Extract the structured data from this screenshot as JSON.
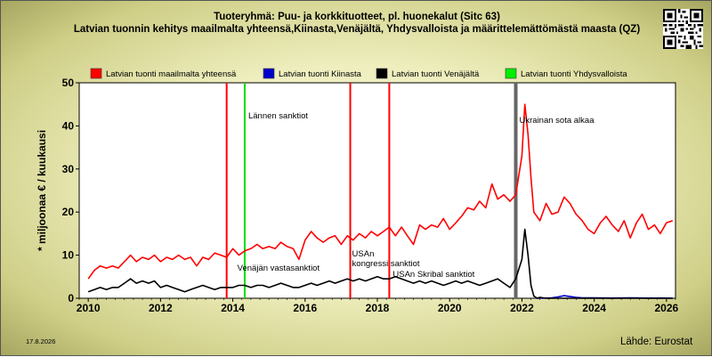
{
  "title": "Tuoteryhmä: Puu- ja korkkituotteet, pl. huonekalut (Sitc 63)",
  "subtitle": "Latvian tuonnin kehitys maailmalta yhteensä,Kiinasta,Venäjältä, Yhdysvalloista ja määrittelemättömästä maasta (QZ)",
  "date_label": "17.8.2026",
  "source": "Lähde: Eurostat",
  "chart_data": {
    "type": "line",
    "title": "Tuoteryhmä: Puu- ja korkkituotteet, pl. huonekalut (Sitc 63)",
    "subtitle": "Latvian tuonnin kehitys maailmalta yhteensä,Kiinasta,Venäjältä, Yhdysvalloista ja määrittelemättömästä maasta (QZ)",
    "ylabel": "* miljoonaa € / kuukausi",
    "xlabel": "",
    "xlim": [
      2009.75,
      2026.25
    ],
    "ylim": [
      0,
      50
    ],
    "yticks": [
      0,
      10,
      20,
      30,
      40,
      50
    ],
    "xticks": [
      2010,
      2012,
      2014,
      2016,
      2018,
      2020,
      2022,
      2024,
      2026
    ],
    "grid": false,
    "legend_position": "top",
    "series": [
      {
        "name": "Latvian tuonti maailmalta yhteensä",
        "color": "#ff0000",
        "points": [
          [
            2010.0,
            4.5
          ],
          [
            2010.17,
            6.5
          ],
          [
            2010.33,
            7.5
          ],
          [
            2010.5,
            7.0
          ],
          [
            2010.67,
            7.5
          ],
          [
            2010.83,
            7.0
          ],
          [
            2011.0,
            8.5
          ],
          [
            2011.17,
            10.0
          ],
          [
            2011.33,
            8.5
          ],
          [
            2011.5,
            9.5
          ],
          [
            2011.67,
            9.0
          ],
          [
            2011.83,
            10.0
          ],
          [
            2012.0,
            8.5
          ],
          [
            2012.17,
            9.5
          ],
          [
            2012.33,
            9.0
          ],
          [
            2012.5,
            10.0
          ],
          [
            2012.67,
            9.0
          ],
          [
            2012.83,
            9.5
          ],
          [
            2013.0,
            7.5
          ],
          [
            2013.17,
            9.5
          ],
          [
            2013.33,
            9.0
          ],
          [
            2013.5,
            10.5
          ],
          [
            2013.67,
            10.0
          ],
          [
            2013.83,
            9.5
          ],
          [
            2014.0,
            11.5
          ],
          [
            2014.17,
            10.0
          ],
          [
            2014.33,
            11.0
          ],
          [
            2014.5,
            11.5
          ],
          [
            2014.67,
            12.5
          ],
          [
            2014.83,
            11.5
          ],
          [
            2015.0,
            12.0
          ],
          [
            2015.17,
            11.5
          ],
          [
            2015.33,
            13.0
          ],
          [
            2015.5,
            12.0
          ],
          [
            2015.67,
            11.5
          ],
          [
            2015.83,
            9.0
          ],
          [
            2016.0,
            13.5
          ],
          [
            2016.17,
            15.5
          ],
          [
            2016.33,
            14.0
          ],
          [
            2016.5,
            13.0
          ],
          [
            2016.67,
            14.0
          ],
          [
            2016.83,
            14.5
          ],
          [
            2017.0,
            12.5
          ],
          [
            2017.17,
            14.5
          ],
          [
            2017.33,
            13.5
          ],
          [
            2017.5,
            15.0
          ],
          [
            2017.67,
            14.0
          ],
          [
            2017.83,
            15.5
          ],
          [
            2018.0,
            14.5
          ],
          [
            2018.17,
            15.5
          ],
          [
            2018.33,
            16.5
          ],
          [
            2018.5,
            14.5
          ],
          [
            2018.67,
            16.5
          ],
          [
            2018.83,
            14.5
          ],
          [
            2019.0,
            12.5
          ],
          [
            2019.17,
            17.0
          ],
          [
            2019.33,
            16.0
          ],
          [
            2019.5,
            17.0
          ],
          [
            2019.67,
            16.5
          ],
          [
            2019.83,
            18.5
          ],
          [
            2020.0,
            16.0
          ],
          [
            2020.17,
            17.5
          ],
          [
            2020.33,
            19.0
          ],
          [
            2020.5,
            21.0
          ],
          [
            2020.67,
            20.5
          ],
          [
            2020.83,
            22.5
          ],
          [
            2021.0,
            21.0
          ],
          [
            2021.17,
            26.5
          ],
          [
            2021.33,
            23.0
          ],
          [
            2021.5,
            24.0
          ],
          [
            2021.67,
            22.5
          ],
          [
            2021.83,
            24.0
          ],
          [
            2022.0,
            33.0
          ],
          [
            2022.08,
            45.0
          ],
          [
            2022.17,
            38.0
          ],
          [
            2022.25,
            28.0
          ],
          [
            2022.33,
            20.0
          ],
          [
            2022.5,
            18.0
          ],
          [
            2022.67,
            22.0
          ],
          [
            2022.83,
            19.5
          ],
          [
            2023.0,
            20.0
          ],
          [
            2023.17,
            23.5
          ],
          [
            2023.33,
            22.0
          ],
          [
            2023.5,
            19.5
          ],
          [
            2023.67,
            18.0
          ],
          [
            2023.83,
            16.0
          ],
          [
            2024.0,
            15.0
          ],
          [
            2024.17,
            17.5
          ],
          [
            2024.33,
            19.0
          ],
          [
            2024.5,
            17.0
          ],
          [
            2024.67,
            15.5
          ],
          [
            2024.83,
            18.0
          ],
          [
            2025.0,
            14.0
          ],
          [
            2025.17,
            17.5
          ],
          [
            2025.33,
            19.5
          ],
          [
            2025.5,
            16.0
          ],
          [
            2025.67,
            17.0
          ],
          [
            2025.83,
            15.0
          ],
          [
            2026.0,
            17.5
          ],
          [
            2026.17,
            18.0
          ]
        ]
      },
      {
        "name": "Latvian tuonti Kiinasta",
        "color": "#0000cc",
        "points": [
          [
            2022.42,
            0.0
          ],
          [
            2022.67,
            0.05
          ],
          [
            2022.83,
            0.1
          ],
          [
            2023.0,
            0.3
          ],
          [
            2023.17,
            0.6
          ],
          [
            2023.33,
            0.4
          ],
          [
            2023.5,
            0.2
          ],
          [
            2023.67,
            0.1
          ],
          [
            2024.0,
            0.1
          ],
          [
            2024.5,
            0.05
          ],
          [
            2025.0,
            0.1
          ],
          [
            2025.5,
            0.05
          ],
          [
            2026.0,
            0.05
          ],
          [
            2026.17,
            0.0
          ]
        ]
      },
      {
        "name": "Latvian tuonti Venäjältä",
        "color": "#000000",
        "points": [
          [
            2010.0,
            1.5
          ],
          [
            2010.17,
            2.0
          ],
          [
            2010.33,
            2.5
          ],
          [
            2010.5,
            2.0
          ],
          [
            2010.67,
            2.5
          ],
          [
            2010.83,
            2.5
          ],
          [
            2011.0,
            3.5
          ],
          [
            2011.17,
            4.5
          ],
          [
            2011.33,
            3.5
          ],
          [
            2011.5,
            4.0
          ],
          [
            2011.67,
            3.5
          ],
          [
            2011.83,
            4.0
          ],
          [
            2012.0,
            2.5
          ],
          [
            2012.17,
            3.0
          ],
          [
            2012.33,
            2.5
          ],
          [
            2012.5,
            2.0
          ],
          [
            2012.67,
            1.5
          ],
          [
            2012.83,
            2.0
          ],
          [
            2013.0,
            2.5
          ],
          [
            2013.17,
            3.0
          ],
          [
            2013.33,
            2.5
          ],
          [
            2013.5,
            2.0
          ],
          [
            2013.67,
            2.5
          ],
          [
            2013.83,
            2.5
          ],
          [
            2014.0,
            2.5
          ],
          [
            2014.17,
            3.0
          ],
          [
            2014.33,
            3.0
          ],
          [
            2014.5,
            2.5
          ],
          [
            2014.67,
            3.0
          ],
          [
            2014.83,
            3.0
          ],
          [
            2015.0,
            2.5
          ],
          [
            2015.17,
            3.0
          ],
          [
            2015.33,
            3.5
          ],
          [
            2015.5,
            3.0
          ],
          [
            2015.67,
            2.5
          ],
          [
            2015.83,
            2.5
          ],
          [
            2016.0,
            3.0
          ],
          [
            2016.17,
            3.5
          ],
          [
            2016.33,
            3.0
          ],
          [
            2016.5,
            3.5
          ],
          [
            2016.67,
            4.0
          ],
          [
            2016.83,
            3.5
          ],
          [
            2017.0,
            4.0
          ],
          [
            2017.17,
            4.5
          ],
          [
            2017.33,
            4.0
          ],
          [
            2017.5,
            4.5
          ],
          [
            2017.67,
            4.0
          ],
          [
            2017.83,
            4.5
          ],
          [
            2018.0,
            5.0
          ],
          [
            2018.17,
            4.5
          ],
          [
            2018.33,
            4.5
          ],
          [
            2018.5,
            5.0
          ],
          [
            2018.67,
            4.5
          ],
          [
            2018.83,
            4.0
          ],
          [
            2019.0,
            3.5
          ],
          [
            2019.17,
            4.0
          ],
          [
            2019.33,
            3.5
          ],
          [
            2019.5,
            4.0
          ],
          [
            2019.67,
            3.5
          ],
          [
            2019.83,
            3.0
          ],
          [
            2020.0,
            3.5
          ],
          [
            2020.17,
            4.0
          ],
          [
            2020.33,
            3.5
          ],
          [
            2020.5,
            4.0
          ],
          [
            2020.67,
            3.5
          ],
          [
            2020.83,
            3.0
          ],
          [
            2021.0,
            3.5
          ],
          [
            2021.17,
            4.0
          ],
          [
            2021.33,
            4.5
          ],
          [
            2021.5,
            3.5
          ],
          [
            2021.67,
            2.5
          ],
          [
            2021.83,
            4.5
          ],
          [
            2022.0,
            9.0
          ],
          [
            2022.08,
            16.0
          ],
          [
            2022.17,
            10.0
          ],
          [
            2022.25,
            3.0
          ],
          [
            2022.33,
            0.5
          ],
          [
            2022.42,
            0.0
          ],
          [
            2022.5,
            0.2
          ],
          [
            2022.67,
            0.0
          ],
          [
            2026.17,
            0.0
          ]
        ]
      },
      {
        "name": "Latvian tuonti Yhdysvalloista",
        "color": "#00ee00",
        "points": []
      }
    ],
    "events": [
      {
        "label": "Lännen sanktiot",
        "x": 2014.33,
        "color": "#00dd00"
      },
      {
        "label": "Venäjän vastasanktiot",
        "x": 2013.83,
        "color": "#ff0000"
      },
      {
        "label": "USAn\nkongressi sanktiot",
        "x": 2017.25,
        "color": "#ff0000"
      },
      {
        "label": "USAn Skribal sanktiot",
        "x": 2018.33,
        "color": "#ff0000"
      },
      {
        "label": "Ukrainan sota alkaa",
        "x": 2021.83,
        "color": "#666666"
      }
    ]
  }
}
